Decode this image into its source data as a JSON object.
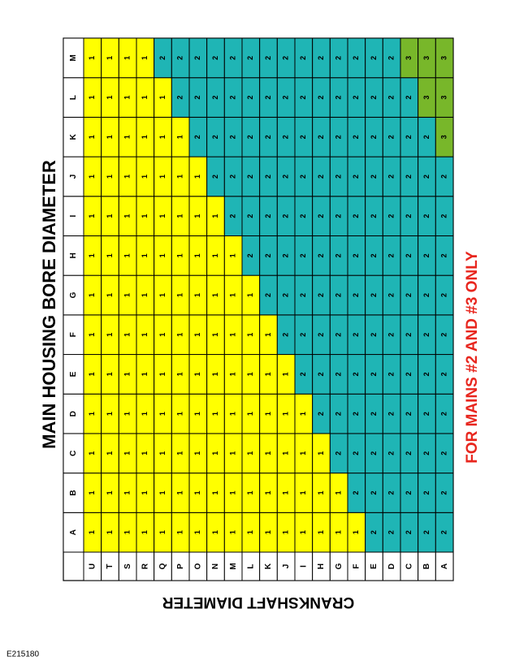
{
  "title": "MAIN HOUSING BORE DIAMETER",
  "subtitle": "CRANKSHAFT DIAMETER",
  "note": "FOR MAINS #2 AND #3 ONLY",
  "figure_id": "E215180",
  "value_colors": {
    "1": "#ffff00",
    "2": "#1fb5b5",
    "3": "#78b72a"
  },
  "table": {
    "columns": [
      "A",
      "B",
      "C",
      "D",
      "E",
      "F",
      "G",
      "H",
      "I",
      "J",
      "K",
      "L",
      "M"
    ],
    "rows": [
      {
        "label": "U",
        "cells": [
          1,
          1,
          1,
          1,
          1,
          1,
          1,
          1,
          1,
          1,
          1,
          1,
          1
        ]
      },
      {
        "label": "T",
        "cells": [
          1,
          1,
          1,
          1,
          1,
          1,
          1,
          1,
          1,
          1,
          1,
          1,
          1
        ]
      },
      {
        "label": "S",
        "cells": [
          1,
          1,
          1,
          1,
          1,
          1,
          1,
          1,
          1,
          1,
          1,
          1,
          1
        ]
      },
      {
        "label": "R",
        "cells": [
          1,
          1,
          1,
          1,
          1,
          1,
          1,
          1,
          1,
          1,
          1,
          1,
          1
        ]
      },
      {
        "label": "Q",
        "cells": [
          1,
          1,
          1,
          1,
          1,
          1,
          1,
          1,
          1,
          1,
          1,
          1,
          2
        ]
      },
      {
        "label": "P",
        "cells": [
          1,
          1,
          1,
          1,
          1,
          1,
          1,
          1,
          1,
          1,
          1,
          2,
          2
        ]
      },
      {
        "label": "O",
        "cells": [
          1,
          1,
          1,
          1,
          1,
          1,
          1,
          1,
          1,
          1,
          2,
          2,
          2
        ]
      },
      {
        "label": "N",
        "cells": [
          1,
          1,
          1,
          1,
          1,
          1,
          1,
          1,
          1,
          2,
          2,
          2,
          2
        ]
      },
      {
        "label": "M",
        "cells": [
          1,
          1,
          1,
          1,
          1,
          1,
          1,
          1,
          2,
          2,
          2,
          2,
          2
        ]
      },
      {
        "label": "L",
        "cells": [
          1,
          1,
          1,
          1,
          1,
          1,
          1,
          2,
          2,
          2,
          2,
          2,
          2
        ]
      },
      {
        "label": "K",
        "cells": [
          1,
          1,
          1,
          1,
          1,
          1,
          2,
          2,
          2,
          2,
          2,
          2,
          2
        ]
      },
      {
        "label": "J",
        "cells": [
          1,
          1,
          1,
          1,
          1,
          2,
          2,
          2,
          2,
          2,
          2,
          2,
          2
        ]
      },
      {
        "label": "I",
        "cells": [
          1,
          1,
          1,
          1,
          2,
          2,
          2,
          2,
          2,
          2,
          2,
          2,
          2
        ]
      },
      {
        "label": "H",
        "cells": [
          1,
          1,
          1,
          2,
          2,
          2,
          2,
          2,
          2,
          2,
          2,
          2,
          2
        ]
      },
      {
        "label": "G",
        "cells": [
          1,
          1,
          2,
          2,
          2,
          2,
          2,
          2,
          2,
          2,
          2,
          2,
          2
        ]
      },
      {
        "label": "F",
        "cells": [
          1,
          2,
          2,
          2,
          2,
          2,
          2,
          2,
          2,
          2,
          2,
          2,
          2
        ]
      },
      {
        "label": "E",
        "cells": [
          2,
          2,
          2,
          2,
          2,
          2,
          2,
          2,
          2,
          2,
          2,
          2,
          2
        ]
      },
      {
        "label": "D",
        "cells": [
          2,
          2,
          2,
          2,
          2,
          2,
          2,
          2,
          2,
          2,
          2,
          2,
          2
        ]
      },
      {
        "label": "C",
        "cells": [
          2,
          2,
          2,
          2,
          2,
          2,
          2,
          2,
          2,
          2,
          2,
          2,
          3
        ]
      },
      {
        "label": "B",
        "cells": [
          2,
          2,
          2,
          2,
          2,
          2,
          2,
          2,
          2,
          2,
          2,
          3,
          3
        ]
      },
      {
        "label": "A",
        "cells": [
          2,
          2,
          2,
          2,
          2,
          2,
          2,
          2,
          2,
          2,
          3,
          3,
          3
        ]
      }
    ]
  }
}
